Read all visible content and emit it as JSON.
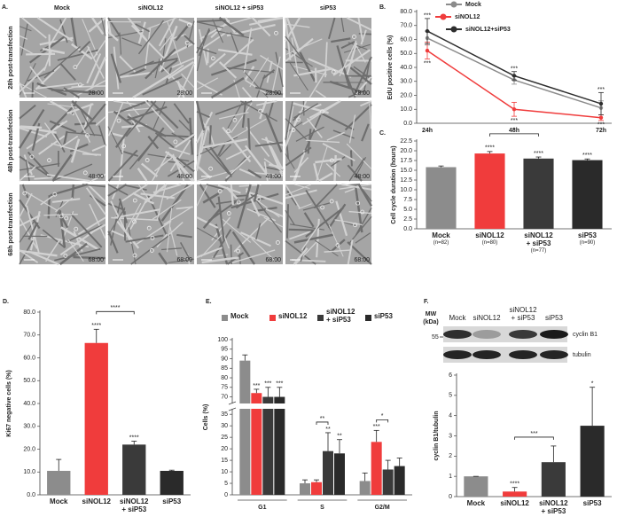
{
  "panel_a": {
    "panel": "A.",
    "columns": [
      "Mock",
      "siNOL12",
      "siNOL12 + siP53",
      "siP53"
    ],
    "rows": [
      "28h post-transfection",
      "48h post-transfection",
      "68h post-transfection"
    ],
    "timestamps": [
      "28:00",
      "48:00",
      "68:00"
    ]
  },
  "blot": {
    "mw_label": "MW\n(kDa)",
    "mw_marker": "55",
    "lanes": [
      "Mock",
      "siNOL12",
      "siNOL12\n+ siP53",
      "siP53"
    ],
    "bands": [
      "cyclin B1",
      "tubulin"
    ]
  },
  "chart_data": [
    {
      "type": "line",
      "panel": "B.",
      "y_label": "EdU positive cells (%)",
      "categories": [
        "24h",
        "48h",
        "72h"
      ],
      "ylim": [
        0,
        80
      ],
      "yticks": [
        {
          "value": 0,
          "label": "0.0"
        },
        {
          "value": 10,
          "label": "10.0"
        },
        {
          "value": 20,
          "label": "20.0"
        },
        {
          "value": 30,
          "label": "30.0"
        },
        {
          "value": 40,
          "label": "40.0"
        },
        {
          "value": 50,
          "label": "50.0"
        },
        {
          "value": 60,
          "label": "60.0"
        },
        {
          "value": 70,
          "label": "70.0"
        },
        {
          "value": 80,
          "label": "80.0"
        }
      ],
      "series": [
        {
          "name": "Mock",
          "color": "#8c8c8c",
          "values": [
            61,
            31,
            11
          ],
          "errors": [
            5,
            3,
            5
          ],
          "significance": [
            null,
            null,
            null
          ]
        },
        {
          "name": "siNOL12",
          "color": "#f03c3c",
          "values": [
            52,
            10,
            4
          ],
          "errors": [
            6,
            5,
            2
          ],
          "significance": [
            "***",
            "***",
            "***"
          ]
        },
        {
          "name": "siNOL12+siP53",
          "color": "#2e2e2e",
          "values": [
            66,
            34,
            14
          ],
          "errors": [
            9,
            3,
            8
          ],
          "significance": [
            "***",
            "***",
            "***"
          ]
        }
      ]
    },
    {
      "type": "bar",
      "panel": "C.",
      "y_label": "Cell cycle duration (hours)",
      "categories": [
        "Mock",
        "siNOL12",
        "siNOL12\n+ siP53",
        "siP53"
      ],
      "n_labels": [
        "(n=82)",
        "(n=80)",
        "(n=77)",
        "(n=90)"
      ],
      "values": [
        15.8,
        19.3,
        18.0,
        17.6
      ],
      "errors": [
        0.3,
        0.5,
        0.4,
        0.3
      ],
      "significance": [
        null,
        "****",
        "****",
        "****"
      ],
      "colors": [
        "#8c8c8c",
        "#f03c3c",
        "#3a3a3a",
        "#2a2a2a"
      ],
      "ylim": [
        0,
        22.5
      ],
      "yticks": [
        {
          "value": 0,
          "label": "0.0"
        },
        2.5,
        {
          "value": 5,
          "label": "5.0"
        },
        7.5,
        {
          "value": 10,
          "label": "10.0"
        },
        12.5,
        {
          "value": 15,
          "label": "15.0"
        },
        17.5,
        {
          "value": 20,
          "label": "20.0"
        },
        22.5
      ],
      "comparisons": [
        {
          "pair": [
            1,
            2
          ],
          "label": "*"
        }
      ]
    },
    {
      "type": "bar",
      "panel": "D.",
      "y_label": "Ki67 negative cells (%)",
      "categories": [
        "Mock",
        "siNOL12",
        "siNOL12\n+ siP53",
        "siP53"
      ],
      "values": [
        10.5,
        66.5,
        22,
        10.5
      ],
      "errors": [
        5,
        6,
        1.5,
        0.3
      ],
      "significance": [
        null,
        "****",
        "****",
        null
      ],
      "colors": [
        "#8c8c8c",
        "#f03c3c",
        "#3a3a3a",
        "#2a2a2a"
      ],
      "ylim": [
        0,
        80
      ],
      "yticks": [
        {
          "value": 0,
          "label": "0.0"
        },
        {
          "value": 10,
          "label": "10.0"
        },
        {
          "value": 20,
          "label": "20.0"
        },
        {
          "value": 30,
          "label": "30.0"
        },
        {
          "value": 40,
          "label": "40.0"
        },
        {
          "value": 50,
          "label": "50.0"
        },
        {
          "value": 60,
          "label": "60.0"
        },
        {
          "value": 70,
          "label": "70.0"
        },
        {
          "value": 80,
          "label": "80.0"
        }
      ],
      "comparisons": [
        {
          "pair": [
            1,
            2
          ],
          "label": "****"
        }
      ]
    },
    {
      "type": "grouped_bar",
      "panel": "E.",
      "y_label": "Cells (%)",
      "categories": [
        "G1",
        "S",
        "G2/M"
      ],
      "ylim": [
        0,
        100
      ],
      "ybreak": [
        37,
        67
      ],
      "yticks": [
        0,
        5,
        10,
        15,
        20,
        25,
        30,
        35,
        70,
        75,
        80,
        85,
        90,
        95,
        100
      ],
      "series": [
        {
          "name": "Mock",
          "color": "#8c8c8c",
          "values": [
            89,
            5,
            6
          ],
          "errors": [
            3,
            1.5,
            3.5
          ],
          "significance": [
            null,
            null,
            null
          ]
        },
        {
          "name": "siNOL12",
          "color": "#f03c3c",
          "values": [
            72,
            5.5,
            23
          ],
          "errors": [
            2,
            1,
            5
          ],
          "significance": [
            "***",
            null,
            "***"
          ]
        },
        {
          "name": "siNOL12\n+ siP53",
          "color": "#3a3a3a",
          "values": [
            70,
            19,
            11
          ],
          "errors": [
            5,
            8,
            4
          ],
          "significance": [
            "***",
            "**",
            null
          ]
        },
        {
          "name": "siP53",
          "color": "#2a2a2a",
          "values": [
            70,
            18,
            12.5
          ],
          "errors": [
            5,
            6,
            3.5
          ],
          "significance": [
            "***",
            "**",
            null
          ]
        }
      ],
      "comparisons": [
        {
          "group": 1,
          "pair": [
            1,
            2
          ],
          "label": "**"
        },
        {
          "group": 2,
          "pair": [
            1,
            2
          ],
          "label": "*"
        }
      ]
    },
    {
      "type": "bar",
      "panel": "F.",
      "y_label": "cyclin B1/tubulin",
      "categories": [
        "Mock",
        "siNOL12",
        "siNOL12\n+ siP53",
        "siP53"
      ],
      "values": [
        1.0,
        0.25,
        1.7,
        3.5
      ],
      "errors": [
        0,
        0.2,
        0.8,
        1.9
      ],
      "significance": [
        null,
        "****",
        null,
        "*"
      ],
      "colors": [
        "#8c8c8c",
        "#f03c3c",
        "#3a3a3a",
        "#2a2a2a"
      ],
      "ylim": [
        0,
        6
      ],
      "yticks": [
        0,
        1,
        2,
        3,
        4,
        5,
        6
      ],
      "comparisons": [
        {
          "pair": [
            1,
            2
          ],
          "label": "***"
        }
      ]
    }
  ]
}
